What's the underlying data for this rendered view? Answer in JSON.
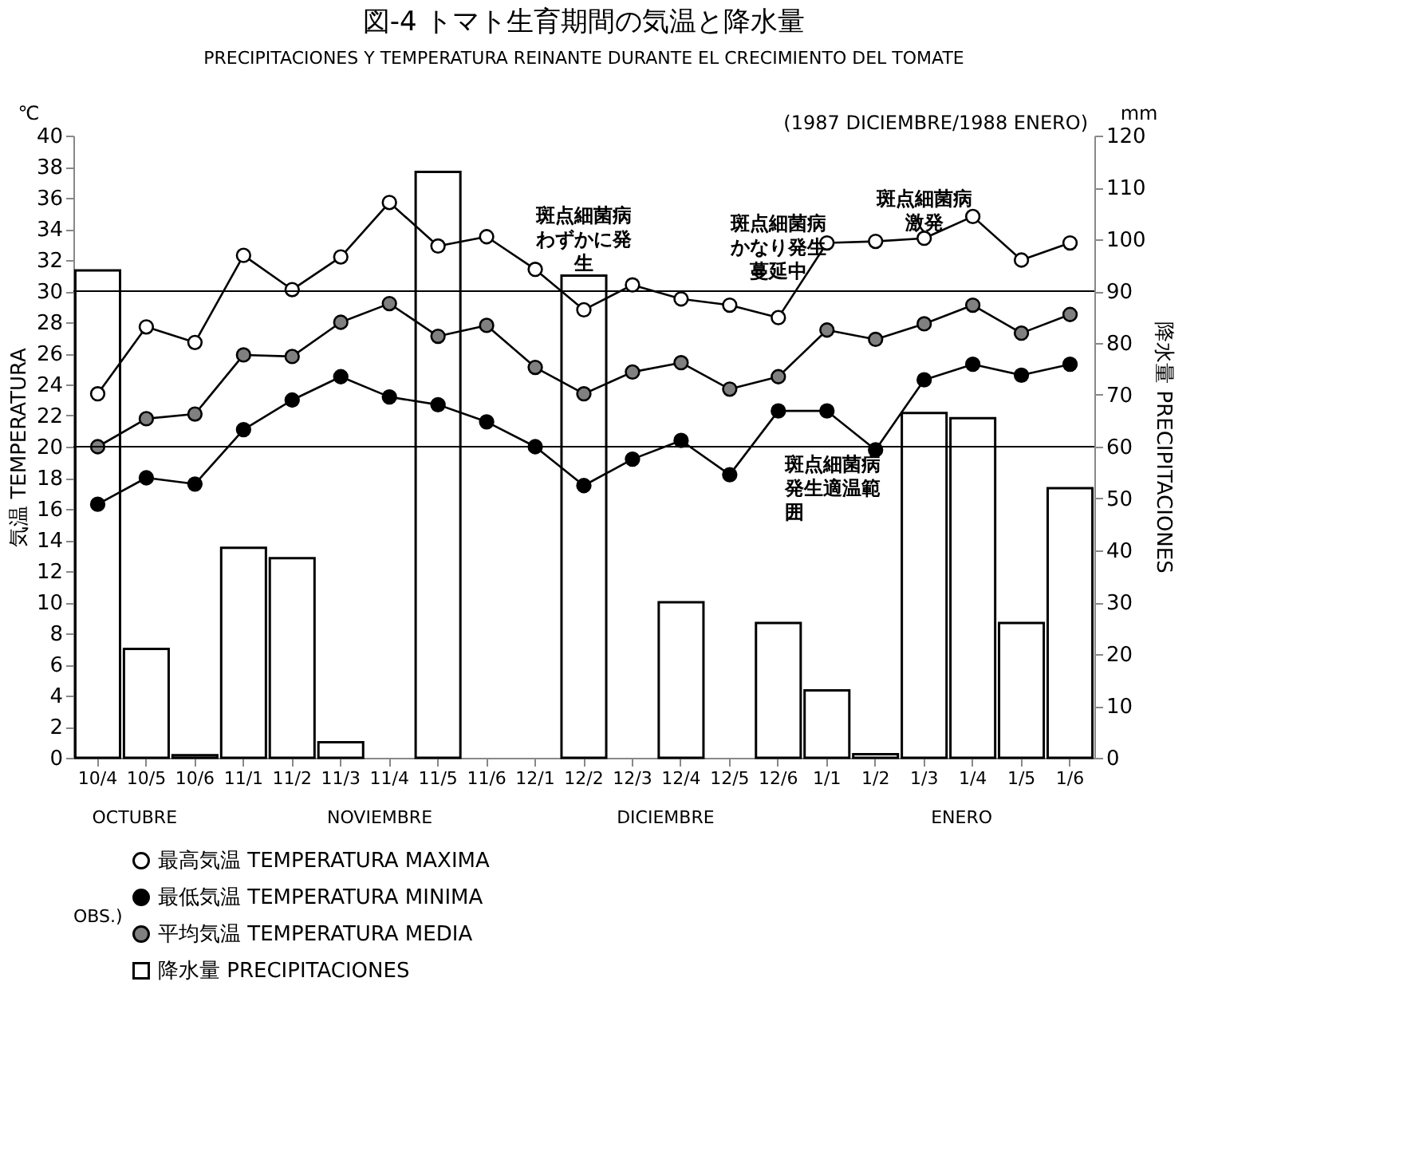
{
  "chart_data": {
    "type": "line",
    "title": "図-4 トマト生育期間の気温と降水量",
    "subtitle": "PRECIPITACIONES Y TEMPERATURA REINANTE DURANTE EL CRECIMIENTO DEL TOMATE",
    "ylabel": "気温 TEMPERATURA",
    "y2label": "降水量 PRECIPITACIONES",
    "legend_title": "OBS.)",
    "categories": [
      "10/4",
      "10/5",
      "10/6",
      "11/1",
      "11/2",
      "11/3",
      "11/4",
      "11/5",
      "11/6",
      "12/1",
      "12/2",
      "12/3",
      "12/4",
      "12/5",
      "12/6",
      "1/1",
      "1/2",
      "1/3",
      "1/4",
      "1/5",
      "1/6"
    ],
    "series": [
      {
        "name": "最高気温 TEMPERATURA MAXIMA",
        "color": "#ffffff",
        "values": [
          23.4,
          27.7,
          26.7,
          32.3,
          30.1,
          32.2,
          35.7,
          32.9,
          33.5,
          31.4,
          28.8,
          30.4,
          29.5,
          29.1,
          28.3,
          33.1,
          33.2,
          33.4,
          34.8,
          32.0,
          33.1
        ]
      },
      {
        "name": "最低気温 TEMPERATURA MINIMA",
        "color": "#000000",
        "values": [
          16.3,
          18.0,
          17.6,
          21.1,
          23.0,
          24.5,
          23.2,
          22.7,
          21.6,
          20.0,
          17.5,
          19.2,
          20.4,
          18.2,
          22.3,
          22.3,
          19.8,
          24.3,
          25.3,
          24.6,
          25.3
        ]
      },
      {
        "name": "平均気温 TEMPERATURA MEDIA",
        "color": "#808080",
        "values": [
          20.0,
          21.8,
          22.1,
          25.9,
          25.8,
          28.0,
          29.2,
          27.1,
          27.8,
          25.1,
          23.4,
          24.8,
          25.4,
          23.7,
          24.5,
          27.5,
          26.9,
          27.9,
          29.1,
          27.3,
          28.5
        ]
      },
      {
        "name": "降水量 PRECIPITACIONES",
        "type": "bar",
        "axis": "y2",
        "color": "#ffffff",
        "values": [
          94,
          21,
          0.5,
          40.5,
          38.5,
          3,
          null,
          113,
          null,
          null,
          93,
          null,
          30,
          null,
          26,
          13,
          0.7,
          66.5,
          65.5,
          26,
          52
        ]
      }
    ],
    "ylim": [
      0,
      40
    ],
    "yticks": [
      0,
      2,
      4,
      6,
      8,
      10,
      12,
      14,
      16,
      18,
      20,
      22,
      24,
      26,
      28,
      30,
      32,
      34,
      36,
      38,
      40
    ],
    "y2lim": [
      0,
      120
    ],
    "y2ticks": [
      0,
      10,
      20,
      30,
      40,
      50,
      60,
      70,
      80,
      90,
      100,
      110,
      120
    ],
    "ref_lines": [
      {
        "axis": "y",
        "value": 30
      },
      {
        "axis": "y",
        "value": 20,
        "label": "斑点細菌病発生適温範囲"
      }
    ],
    "annotations": [
      "℃",
      "mm",
      "(1987 DICIEMBRE/1988 ENERO)",
      "OCTUBRE",
      "NOVIEMBRE",
      "DICIEMBRE",
      "ENERO",
      {
        "text": "斑点細菌病わずかに発生",
        "x": "12/2",
        "y": 28.8
      },
      {
        "text": "斑点細菌病かなり発生蔓延中",
        "x": "12/6",
        "y": 28.3
      },
      {
        "text": "斑点細菌病激発",
        "x": "1/3",
        "y": 33.4
      }
    ],
    "marker": "circle",
    "line_style": "solid",
    "grid": false,
    "legend": "bottom"
  }
}
